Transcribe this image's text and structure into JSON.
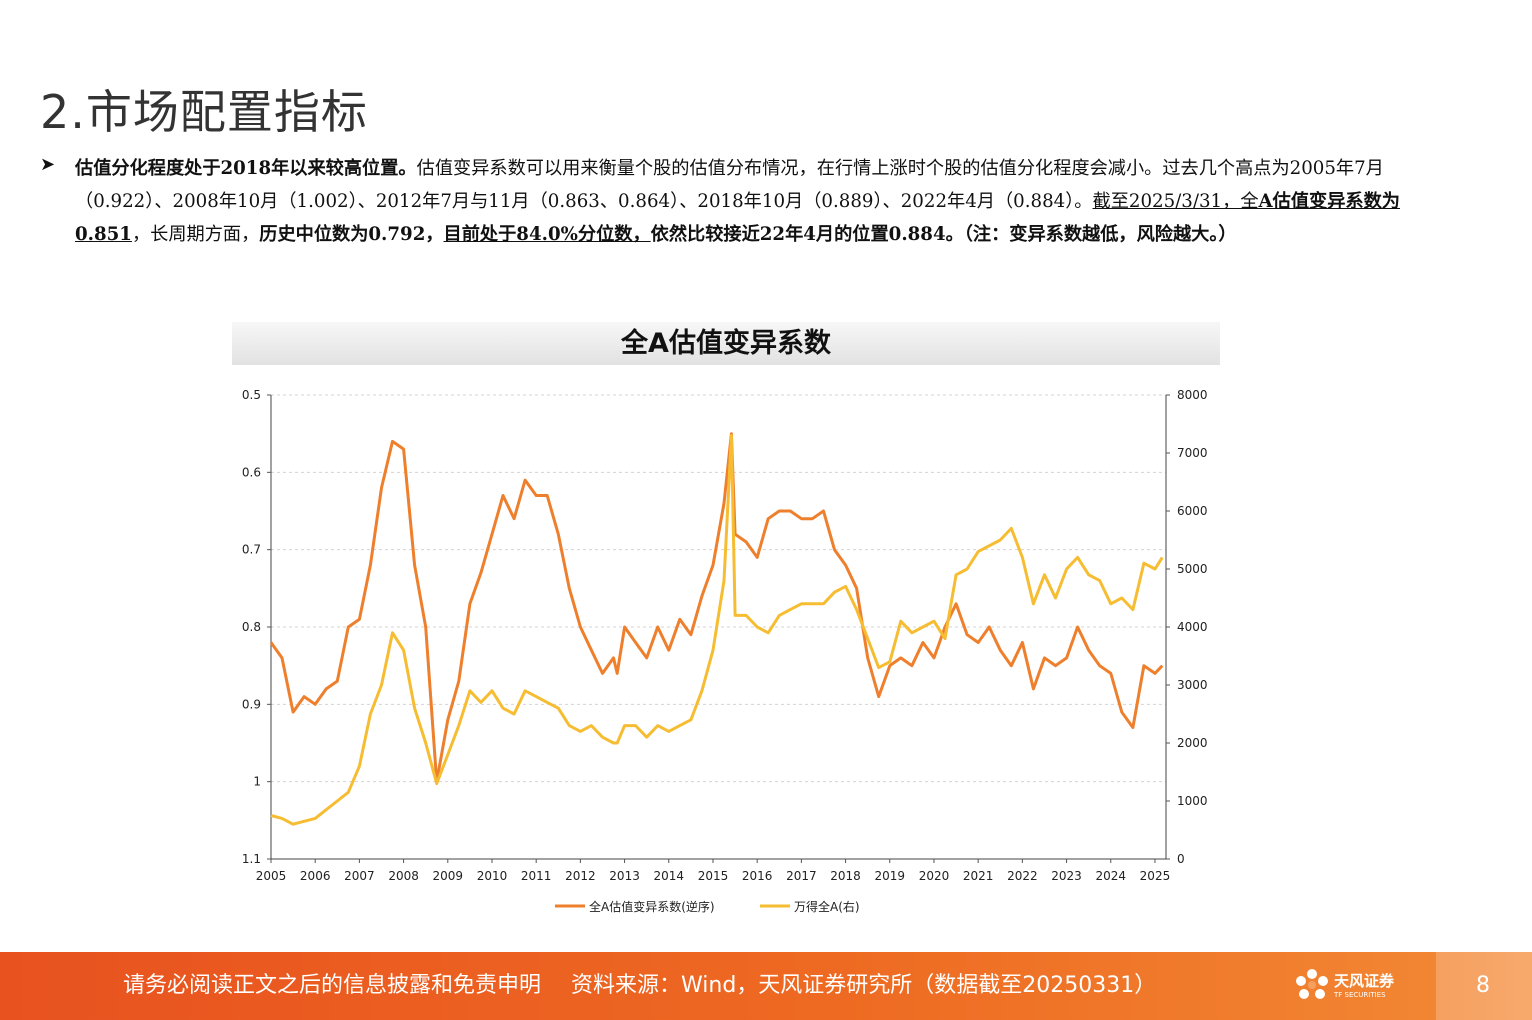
{
  "page": {
    "title": "2.市场配置指标",
    "page_number": "8"
  },
  "bullet": {
    "p1_bold": "估值分化程度处于2018年以来较高位置。",
    "p1_text": "估值变异系数可以用来衡量个股的估值分布情况，在行情上涨时个股的估值分化程度会减小。过去几个高点为2005年7月（0.922）、2008年10月（1.002）、2012年7月与11月（0.863、0.864）、2018年10月（0.889）、2022年4月（0.884）。",
    "p1_ul_plain": "截至2025/3/31，全",
    "p1_ul_bold": "A估值变异系数为0.851",
    "p1_mid": "，长周期方面，",
    "p1_bold2": "历史中位数为0.792，",
    "p1_ul_bold2": "目前处于84.0%分位数，",
    "p1_bold3": "依然比较接近22年4月的位置0.884。（注：变异系数越低，风险越大。）"
  },
  "footer": {
    "disclaimer": "请务必阅读正文之后的信息披露和免责申明",
    "source": "资料来源：Wind，天风证券研究所（数据截至20250331）",
    "logo_name": "天风证券",
    "logo_sub": "TF SECURITIES"
  },
  "colors": {
    "series_cv": "#ee7f2d",
    "series_index": "#f6bd32",
    "footer": "#e8521f"
  },
  "chart_data": {
    "type": "line",
    "title": "全A估值变异系数",
    "x_ticks": [
      "2005",
      "2006",
      "2007",
      "2008",
      "2009",
      "2010",
      "2011",
      "2012",
      "2013",
      "2014",
      "2015",
      "2016",
      "2017",
      "2018",
      "2019",
      "2020",
      "2021",
      "2022",
      "2023",
      "2024",
      "2025"
    ],
    "y_left": {
      "range": [
        0.5,
        1.1
      ],
      "inverted": true,
      "ticks": [
        "0.5",
        "0.6",
        "0.7",
        "0.8",
        "0.9",
        "1",
        "1.1"
      ]
    },
    "y_right": {
      "range": [
        0,
        8000
      ],
      "ticks": [
        "8000",
        "7000",
        "6000",
        "5000",
        "4000",
        "3000",
        "2000",
        "1000",
        "0"
      ]
    },
    "grid": "horizontal-dashed",
    "legend_position": "bottom",
    "series": [
      {
        "name": "全A估值变异系数(逆序)",
        "axis": "left",
        "x": [
          "2005-01",
          "2005-04",
          "2005-07",
          "2005-10",
          "2006-01",
          "2006-04",
          "2006-07",
          "2006-10",
          "2007-01",
          "2007-04",
          "2007-07",
          "2007-10",
          "2008-01",
          "2008-04",
          "2008-07",
          "2008-10",
          "2009-01",
          "2009-04",
          "2009-07",
          "2009-10",
          "2010-01",
          "2010-04",
          "2010-07",
          "2010-10",
          "2011-01",
          "2011-04",
          "2011-07",
          "2011-10",
          "2012-01",
          "2012-04",
          "2012-07",
          "2012-10",
          "2012-11",
          "2013-01",
          "2013-04",
          "2013-07",
          "2013-10",
          "2014-01",
          "2014-04",
          "2014-07",
          "2014-10",
          "2015-01",
          "2015-04",
          "2015-06",
          "2015-07",
          "2015-10",
          "2016-01",
          "2016-04",
          "2016-07",
          "2016-10",
          "2017-01",
          "2017-04",
          "2017-07",
          "2017-10",
          "2018-01",
          "2018-04",
          "2018-07",
          "2018-10",
          "2019-01",
          "2019-04",
          "2019-07",
          "2019-10",
          "2020-01",
          "2020-04",
          "2020-07",
          "2020-10",
          "2021-01",
          "2021-04",
          "2021-07",
          "2021-10",
          "2022-01",
          "2022-04",
          "2022-07",
          "2022-10",
          "2023-01",
          "2023-04",
          "2023-07",
          "2023-10",
          "2024-01",
          "2024-04",
          "2024-07",
          "2024-10",
          "2025-01",
          "2025-03"
        ],
        "values": [
          0.82,
          0.84,
          0.91,
          0.89,
          0.9,
          0.88,
          0.87,
          0.8,
          0.79,
          0.72,
          0.62,
          0.56,
          0.57,
          0.72,
          0.8,
          1.0,
          0.92,
          0.87,
          0.77,
          0.73,
          0.68,
          0.63,
          0.66,
          0.61,
          0.63,
          0.63,
          0.68,
          0.75,
          0.8,
          0.83,
          0.86,
          0.84,
          0.86,
          0.8,
          0.82,
          0.84,
          0.8,
          0.83,
          0.79,
          0.81,
          0.76,
          0.72,
          0.64,
          0.55,
          0.68,
          0.69,
          0.71,
          0.66,
          0.65,
          0.65,
          0.66,
          0.66,
          0.65,
          0.7,
          0.72,
          0.75,
          0.84,
          0.89,
          0.85,
          0.84,
          0.85,
          0.82,
          0.84,
          0.8,
          0.77,
          0.81,
          0.82,
          0.8,
          0.83,
          0.85,
          0.82,
          0.88,
          0.84,
          0.85,
          0.84,
          0.8,
          0.83,
          0.85,
          0.86,
          0.91,
          0.93,
          0.85,
          0.86,
          0.85
        ]
      },
      {
        "name": "万得全A(右)",
        "axis": "right",
        "x": [
          "2005-01",
          "2005-04",
          "2005-07",
          "2005-10",
          "2006-01",
          "2006-04",
          "2006-07",
          "2006-10",
          "2007-01",
          "2007-04",
          "2007-07",
          "2007-10",
          "2008-01",
          "2008-04",
          "2008-07",
          "2008-10",
          "2009-01",
          "2009-04",
          "2009-07",
          "2009-10",
          "2010-01",
          "2010-04",
          "2010-07",
          "2010-10",
          "2011-01",
          "2011-04",
          "2011-07",
          "2011-10",
          "2012-01",
          "2012-04",
          "2012-07",
          "2012-10",
          "2012-11",
          "2013-01",
          "2013-04",
          "2013-07",
          "2013-10",
          "2014-01",
          "2014-04",
          "2014-07",
          "2014-10",
          "2015-01",
          "2015-04",
          "2015-06",
          "2015-07",
          "2015-10",
          "2016-01",
          "2016-04",
          "2016-07",
          "2016-10",
          "2017-01",
          "2017-04",
          "2017-07",
          "2017-10",
          "2018-01",
          "2018-04",
          "2018-07",
          "2018-10",
          "2019-01",
          "2019-04",
          "2019-07",
          "2019-10",
          "2020-01",
          "2020-04",
          "2020-07",
          "2020-10",
          "2021-01",
          "2021-04",
          "2021-07",
          "2021-10",
          "2022-01",
          "2022-04",
          "2022-07",
          "2022-10",
          "2023-01",
          "2023-04",
          "2023-07",
          "2023-10",
          "2024-01",
          "2024-04",
          "2024-07",
          "2024-10",
          "2025-01",
          "2025-03"
        ],
        "values": [
          750,
          700,
          600,
          650,
          700,
          850,
          1000,
          1150,
          1600,
          2500,
          3000,
          3900,
          3600,
          2600,
          2000,
          1300,
          1800,
          2300,
          2900,
          2700,
          2900,
          2600,
          2500,
          2900,
          2800,
          2700,
          2600,
          2300,
          2200,
          2300,
          2100,
          2000,
          2000,
          2300,
          2300,
          2100,
          2300,
          2200,
          2300,
          2400,
          2900,
          3600,
          4800,
          7300,
          4200,
          4200,
          4000,
          3900,
          4200,
          4300,
          4400,
          4400,
          4400,
          4600,
          4700,
          4300,
          3800,
          3300,
          3400,
          4100,
          3900,
          4000,
          4100,
          3800,
          4900,
          5000,
          5300,
          5400,
          5500,
          5700,
          5200,
          4400,
          4900,
          4500,
          5000,
          5200,
          4900,
          4800,
          4400,
          4500,
          4300,
          5100,
          5000,
          5200
        ]
      }
    ]
  }
}
